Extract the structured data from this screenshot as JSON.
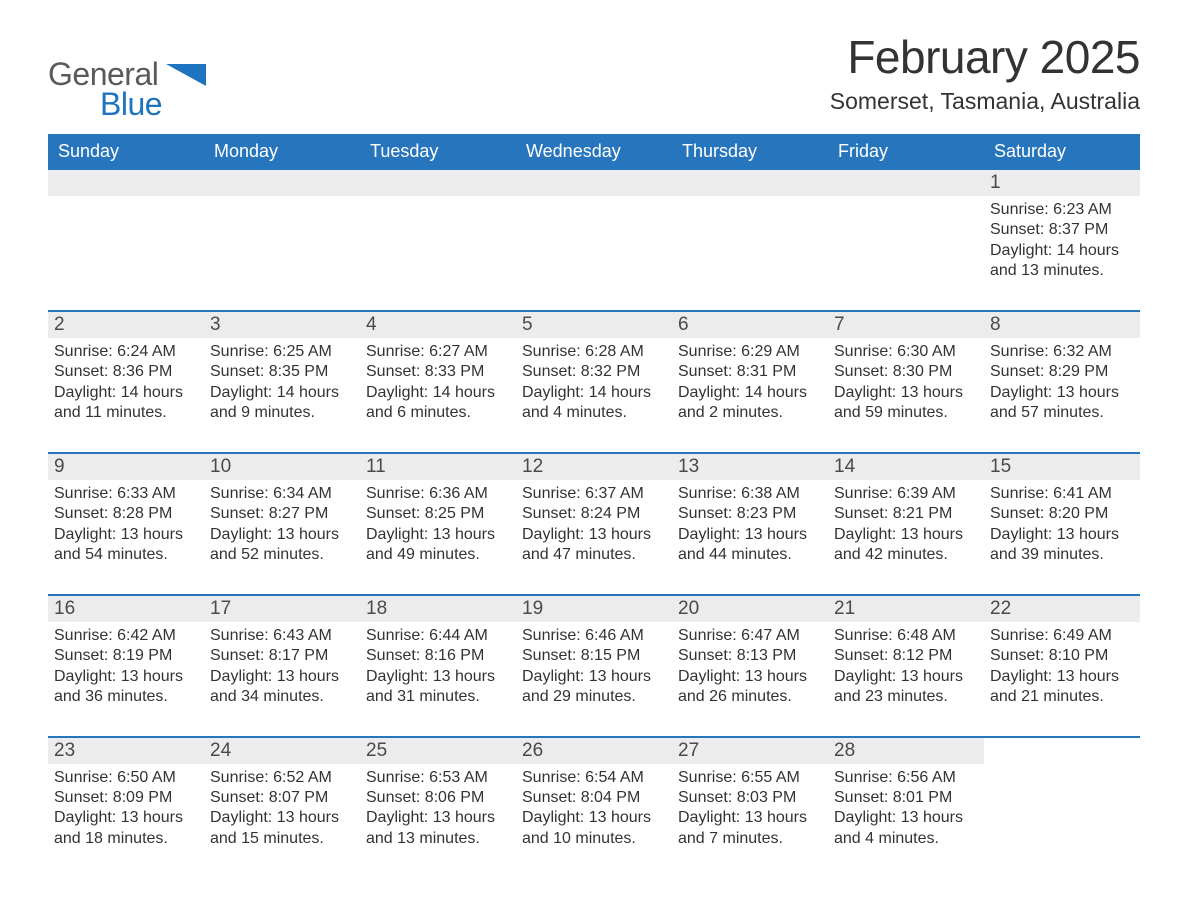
{
  "brand": {
    "word1": "General",
    "word2": "Blue",
    "color_general": "#5a5a5a",
    "color_blue": "#1f74bf",
    "triangle_color": "#1f74bf"
  },
  "title": "February 2025",
  "location": "Somerset, Tasmania, Australia",
  "colors": {
    "header_bg": "#2776bd",
    "header_text": "#ffffff",
    "daynum_bg": "#ececec",
    "row_border": "#2776bd",
    "body_text": "#333333",
    "page_bg": "#ffffff"
  },
  "typography": {
    "title_fontsize": 46,
    "location_fontsize": 23,
    "dow_fontsize": 18,
    "daynum_fontsize": 19,
    "body_fontsize": 16
  },
  "days_of_week": [
    "Sunday",
    "Monday",
    "Tuesday",
    "Wednesday",
    "Thursday",
    "Friday",
    "Saturday"
  ],
  "weeks": [
    [
      {
        "empty": true
      },
      {
        "empty": true
      },
      {
        "empty": true
      },
      {
        "empty": true
      },
      {
        "empty": true
      },
      {
        "empty": true
      },
      {
        "num": "1",
        "sunrise": "Sunrise: 6:23 AM",
        "sunset": "Sunset: 8:37 PM",
        "daylight": "Daylight: 14 hours and 13 minutes."
      }
    ],
    [
      {
        "num": "2",
        "sunrise": "Sunrise: 6:24 AM",
        "sunset": "Sunset: 8:36 PM",
        "daylight": "Daylight: 14 hours and 11 minutes."
      },
      {
        "num": "3",
        "sunrise": "Sunrise: 6:25 AM",
        "sunset": "Sunset: 8:35 PM",
        "daylight": "Daylight: 14 hours and 9 minutes."
      },
      {
        "num": "4",
        "sunrise": "Sunrise: 6:27 AM",
        "sunset": "Sunset: 8:33 PM",
        "daylight": "Daylight: 14 hours and 6 minutes."
      },
      {
        "num": "5",
        "sunrise": "Sunrise: 6:28 AM",
        "sunset": "Sunset: 8:32 PM",
        "daylight": "Daylight: 14 hours and 4 minutes."
      },
      {
        "num": "6",
        "sunrise": "Sunrise: 6:29 AM",
        "sunset": "Sunset: 8:31 PM",
        "daylight": "Daylight: 14 hours and 2 minutes."
      },
      {
        "num": "7",
        "sunrise": "Sunrise: 6:30 AM",
        "sunset": "Sunset: 8:30 PM",
        "daylight": "Daylight: 13 hours and 59 minutes."
      },
      {
        "num": "8",
        "sunrise": "Sunrise: 6:32 AM",
        "sunset": "Sunset: 8:29 PM",
        "daylight": "Daylight: 13 hours and 57 minutes."
      }
    ],
    [
      {
        "num": "9",
        "sunrise": "Sunrise: 6:33 AM",
        "sunset": "Sunset: 8:28 PM",
        "daylight": "Daylight: 13 hours and 54 minutes."
      },
      {
        "num": "10",
        "sunrise": "Sunrise: 6:34 AM",
        "sunset": "Sunset: 8:27 PM",
        "daylight": "Daylight: 13 hours and 52 minutes."
      },
      {
        "num": "11",
        "sunrise": "Sunrise: 6:36 AM",
        "sunset": "Sunset: 8:25 PM",
        "daylight": "Daylight: 13 hours and 49 minutes."
      },
      {
        "num": "12",
        "sunrise": "Sunrise: 6:37 AM",
        "sunset": "Sunset: 8:24 PM",
        "daylight": "Daylight: 13 hours and 47 minutes."
      },
      {
        "num": "13",
        "sunrise": "Sunrise: 6:38 AM",
        "sunset": "Sunset: 8:23 PM",
        "daylight": "Daylight: 13 hours and 44 minutes."
      },
      {
        "num": "14",
        "sunrise": "Sunrise: 6:39 AM",
        "sunset": "Sunset: 8:21 PM",
        "daylight": "Daylight: 13 hours and 42 minutes."
      },
      {
        "num": "15",
        "sunrise": "Sunrise: 6:41 AM",
        "sunset": "Sunset: 8:20 PM",
        "daylight": "Daylight: 13 hours and 39 minutes."
      }
    ],
    [
      {
        "num": "16",
        "sunrise": "Sunrise: 6:42 AM",
        "sunset": "Sunset: 8:19 PM",
        "daylight": "Daylight: 13 hours and 36 minutes."
      },
      {
        "num": "17",
        "sunrise": "Sunrise: 6:43 AM",
        "sunset": "Sunset: 8:17 PM",
        "daylight": "Daylight: 13 hours and 34 minutes."
      },
      {
        "num": "18",
        "sunrise": "Sunrise: 6:44 AM",
        "sunset": "Sunset: 8:16 PM",
        "daylight": "Daylight: 13 hours and 31 minutes."
      },
      {
        "num": "19",
        "sunrise": "Sunrise: 6:46 AM",
        "sunset": "Sunset: 8:15 PM",
        "daylight": "Daylight: 13 hours and 29 minutes."
      },
      {
        "num": "20",
        "sunrise": "Sunrise: 6:47 AM",
        "sunset": "Sunset: 8:13 PM",
        "daylight": "Daylight: 13 hours and 26 minutes."
      },
      {
        "num": "21",
        "sunrise": "Sunrise: 6:48 AM",
        "sunset": "Sunset: 8:12 PM",
        "daylight": "Daylight: 13 hours and 23 minutes."
      },
      {
        "num": "22",
        "sunrise": "Sunrise: 6:49 AM",
        "sunset": "Sunset: 8:10 PM",
        "daylight": "Daylight: 13 hours and 21 minutes."
      }
    ],
    [
      {
        "num": "23",
        "sunrise": "Sunrise: 6:50 AM",
        "sunset": "Sunset: 8:09 PM",
        "daylight": "Daylight: 13 hours and 18 minutes."
      },
      {
        "num": "24",
        "sunrise": "Sunrise: 6:52 AM",
        "sunset": "Sunset: 8:07 PM",
        "daylight": "Daylight: 13 hours and 15 minutes."
      },
      {
        "num": "25",
        "sunrise": "Sunrise: 6:53 AM",
        "sunset": "Sunset: 8:06 PM",
        "daylight": "Daylight: 13 hours and 13 minutes."
      },
      {
        "num": "26",
        "sunrise": "Sunrise: 6:54 AM",
        "sunset": "Sunset: 8:04 PM",
        "daylight": "Daylight: 13 hours and 10 minutes."
      },
      {
        "num": "27",
        "sunrise": "Sunrise: 6:55 AM",
        "sunset": "Sunset: 8:03 PM",
        "daylight": "Daylight: 13 hours and 7 minutes."
      },
      {
        "num": "28",
        "sunrise": "Sunrise: 6:56 AM",
        "sunset": "Sunset: 8:01 PM",
        "daylight": "Daylight: 13 hours and 4 minutes."
      },
      {
        "empty": true,
        "no_bar": true
      }
    ]
  ]
}
